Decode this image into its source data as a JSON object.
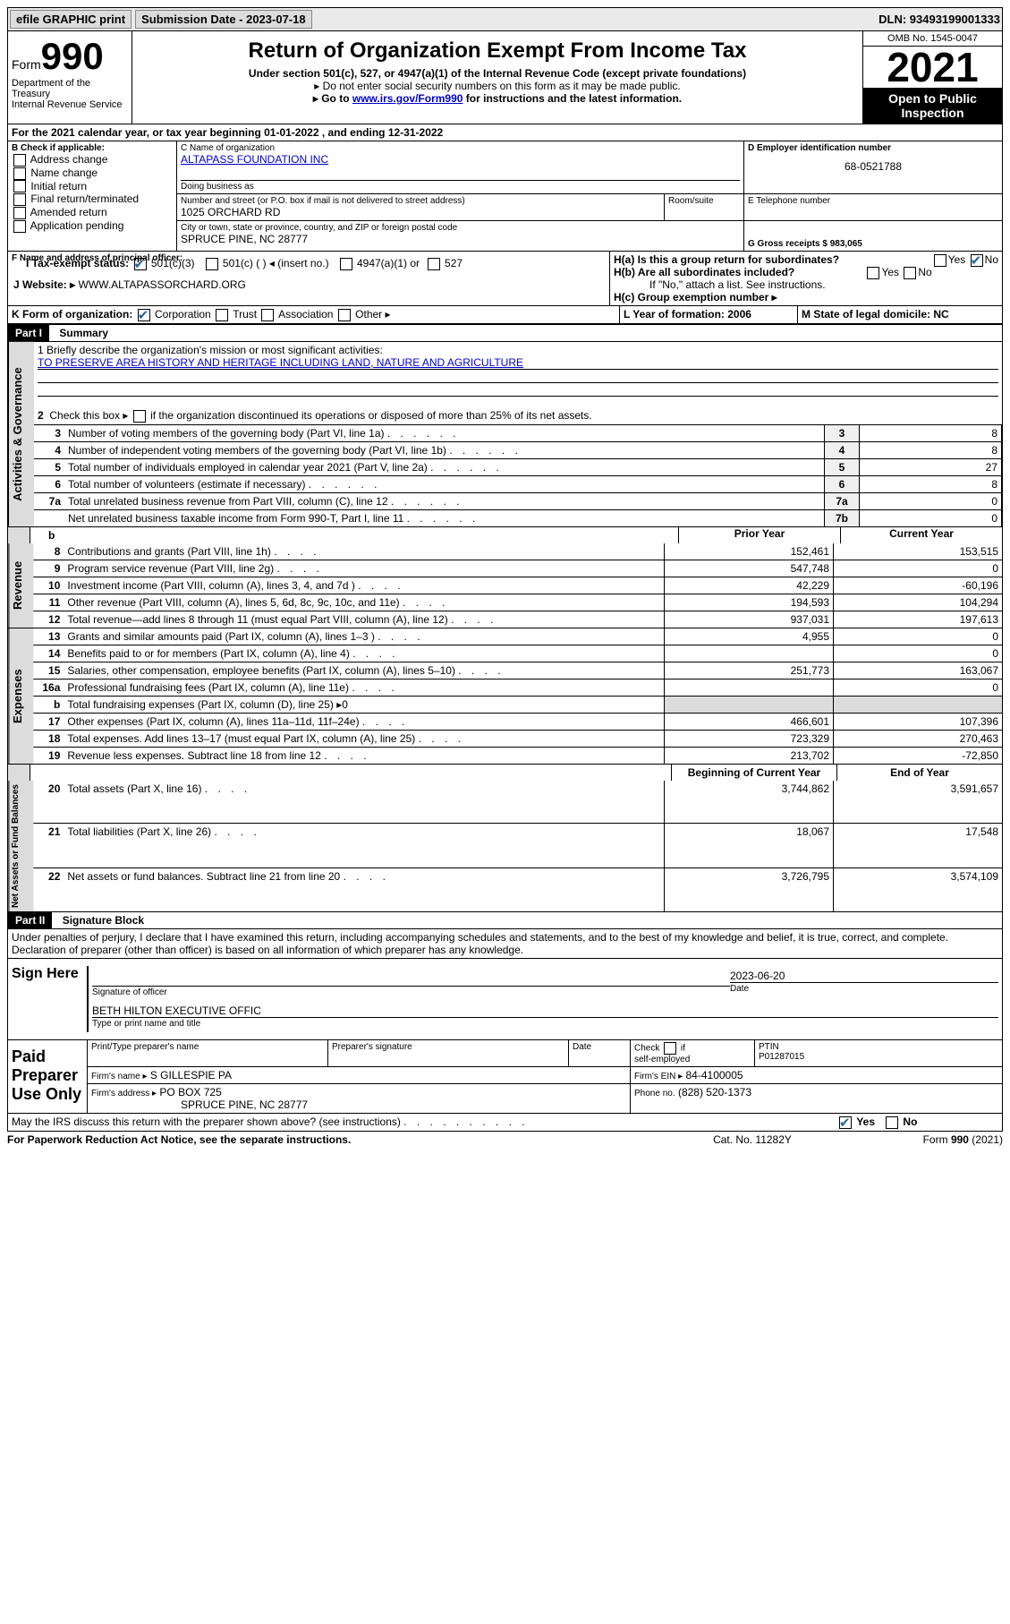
{
  "topbar": {
    "efile": "efile GRAPHIC print",
    "submission_label": "Submission Date - 2023-07-18",
    "dln": "DLN: 93493199001333"
  },
  "header": {
    "form_label": "Form",
    "form_number": "990",
    "dept": "Department of the Treasury",
    "irs": "Internal Revenue Service",
    "title": "Return of Organization Exempt From Income Tax",
    "sub": "Under section 501(c), 527, or 4947(a)(1) of the Internal Revenue Code (except private foundations)",
    "line1": "▸ Do not enter social security numbers on this form as it may be made public.",
    "line2_pre": "▸ Go to ",
    "line2_link": "www.irs.gov/Form990",
    "line2_post": " for instructions and the latest information.",
    "omb": "OMB No. 1545-0047",
    "year": "2021",
    "pub_insp": "Open to Public Inspection"
  },
  "sectionA": {
    "period": "For the 2021 calendar year, or tax year beginning 01-01-2022 , and ending 12-31-2022",
    "b_label": "B Check if applicable:",
    "b_opts": [
      "Address change",
      "Name change",
      "Initial return",
      "Final return/terminated",
      "Amended return",
      "Application pending"
    ],
    "c_name_label": "C Name of organization",
    "c_name": "ALTAPASS FOUNDATION INC",
    "dba_label": "Doing business as",
    "street_label": "Number and street (or P.O. box if mail is not delivered to street address)",
    "street": "1025 ORCHARD RD",
    "room_label": "Room/suite",
    "city_label": "City or town, state or province, country, and ZIP or foreign postal code",
    "city": "SPRUCE PINE, NC  28777",
    "d_label": "D Employer identification number",
    "d_val": "68-0521788",
    "e_label": "E Telephone number",
    "g_label": "G Gross receipts $ 983,065",
    "f_label": "F Name and address of principal officer:",
    "ha": "H(a) Is this a group return for subordinates?",
    "hb": "H(b) Are all subordinates included?",
    "hb_note": "If \"No,\" attach a list. See instructions.",
    "hc": "H(c) Group exemption number ▸",
    "i_label": "I   Tax-exempt status:",
    "i_501c3": "501(c)(3)",
    "i_501c": "501(c) ( ) ◂ (insert no.)",
    "i_4947": "4947(a)(1) or",
    "i_527": "527",
    "j_label": "J   Website: ▸",
    "j_val": "WWW.ALTAPASSORCHARD.ORG",
    "k_label": "K Form of organization:",
    "k_opts": [
      "Corporation",
      "Trust",
      "Association",
      "Other ▸"
    ],
    "l_label": "L Year of formation: 2006",
    "m_label": "M State of legal domicile: NC",
    "yes": "Yes",
    "no": "No"
  },
  "part1": {
    "header": "Part I",
    "title": "Summary",
    "line1_label": "1  Briefly describe the organization's mission or most significant activities:",
    "line1_val": "TO PRESERVE AREA HISTORY AND HERITAGE INCLUDING LAND, NATURE AND AGRICULTURE",
    "line2": "2   Check this box ▸  if the organization discontinued its operations or disposed of more than 25% of its net assets.",
    "prior_year": "Prior Year",
    "current_year": "Current Year",
    "beg_year": "Beginning of Current Year",
    "end_year": "End of Year",
    "gov_label": "Activities & Governance",
    "rev_label": "Revenue",
    "exp_label": "Expenses",
    "net_label": "Net Assets or Fund Balances",
    "rows_a": [
      {
        "n": "3",
        "d": "Number of voting members of the governing body (Part VI, line 1a)",
        "box": "3",
        "v": "8"
      },
      {
        "n": "4",
        "d": "Number of independent voting members of the governing body (Part VI, line 1b)",
        "box": "4",
        "v": "8"
      },
      {
        "n": "5",
        "d": "Total number of individuals employed in calendar year 2021 (Part V, line 2a)",
        "box": "5",
        "v": "27"
      },
      {
        "n": "6",
        "d": "Total number of volunteers (estimate if necessary)",
        "box": "6",
        "v": "8"
      },
      {
        "n": "7a",
        "d": "Total unrelated business revenue from Part VIII, column (C), line 12",
        "box": "7a",
        "v": "0"
      },
      {
        "n": "",
        "d": "Net unrelated business taxable income from Form 990-T, Part I, line 11",
        "box": "7b",
        "v": "0"
      }
    ],
    "rows_r": [
      {
        "n": "8",
        "d": "Contributions and grants (Part VIII, line 1h)",
        "p": "152,461",
        "c": "153,515"
      },
      {
        "n": "9",
        "d": "Program service revenue (Part VIII, line 2g)",
        "p": "547,748",
        "c": "0"
      },
      {
        "n": "10",
        "d": "Investment income (Part VIII, column (A), lines 3, 4, and 7d )",
        "p": "42,229",
        "c": "-60,196"
      },
      {
        "n": "11",
        "d": "Other revenue (Part VIII, column (A), lines 5, 6d, 8c, 9c, 10c, and 11e)",
        "p": "194,593",
        "c": "104,294"
      },
      {
        "n": "12",
        "d": "Total revenue—add lines 8 through 11 (must equal Part VIII, column (A), line 12)",
        "p": "937,031",
        "c": "197,613"
      }
    ],
    "rows_e": [
      {
        "n": "13",
        "d": "Grants and similar amounts paid (Part IX, column (A), lines 1–3 )",
        "p": "4,955",
        "c": "0"
      },
      {
        "n": "14",
        "d": "Benefits paid to or for members (Part IX, column (A), line 4)",
        "p": "",
        "c": "0"
      },
      {
        "n": "15",
        "d": "Salaries, other compensation, employee benefits (Part IX, column (A), lines 5–10)",
        "p": "251,773",
        "c": "163,067"
      },
      {
        "n": "16a",
        "d": "Professional fundraising fees (Part IX, column (A), line 11e)",
        "p": "",
        "c": "0"
      },
      {
        "n": "b",
        "d": "Total fundraising expenses (Part IX, column (D), line 25) ▸0",
        "p": "grey",
        "c": "grey"
      },
      {
        "n": "17",
        "d": "Other expenses (Part IX, column (A), lines 11a–11d, 11f–24e)",
        "p": "466,601",
        "c": "107,396"
      },
      {
        "n": "18",
        "d": "Total expenses. Add lines 13–17 (must equal Part IX, column (A), line 25)",
        "p": "723,329",
        "c": "270,463"
      },
      {
        "n": "19",
        "d": "Revenue less expenses. Subtract line 18 from line 12",
        "p": "213,702",
        "c": "-72,850"
      }
    ],
    "rows_n": [
      {
        "n": "20",
        "d": "Total assets (Part X, line 16)",
        "p": "3,744,862",
        "c": "3,591,657"
      },
      {
        "n": "21",
        "d": "Total liabilities (Part X, line 26)",
        "p": "18,067",
        "c": "17,548"
      },
      {
        "n": "22",
        "d": "Net assets or fund balances. Subtract line 21 from line 20",
        "p": "3,726,795",
        "c": "3,574,109"
      }
    ]
  },
  "part2": {
    "header": "Part II",
    "title": "Signature Block",
    "decl": "Under penalties of perjury, I declare that I have examined this return, including accompanying schedules and statements, and to the best of my knowledge and belief, it is true, correct, and complete. Declaration of preparer (other than officer) is based on all information of which preparer has any knowledge.",
    "sign_here": "Sign Here",
    "sig_officer": "Signature of officer",
    "date_label": "Date",
    "date_val": "2023-06-20",
    "name_title": "BETH HILTON EXECUTIVE OFFIC",
    "name_title_label": "Type or print name and title",
    "paid_prep": "Paid Preparer Use Only",
    "pt_name_label": "Print/Type preparer's name",
    "prep_sig_label": "Preparer's signature",
    "check_if": "Check",
    "self_emp": "self-employed",
    "if_label": "if",
    "ptin_label": "PTIN",
    "ptin": "P01287015",
    "firm_name_label": "Firm's name   ▸",
    "firm_name": "S GILLESPIE PA",
    "firm_ein_label": "Firm's EIN ▸",
    "firm_ein": "84-4100005",
    "firm_addr_label": "Firm's address ▸",
    "firm_addr": "PO BOX 725",
    "firm_city": "SPRUCE PINE, NC  28777",
    "phone_label": "Phone no.",
    "phone": "(828) 520-1373",
    "discuss": "May the IRS discuss this return with the preparer shown above? (see instructions)",
    "footer_left": "For Paperwork Reduction Act Notice, see the separate instructions.",
    "footer_mid": "Cat. No. 11282Y",
    "footer_right": "Form 990 (2021)"
  }
}
